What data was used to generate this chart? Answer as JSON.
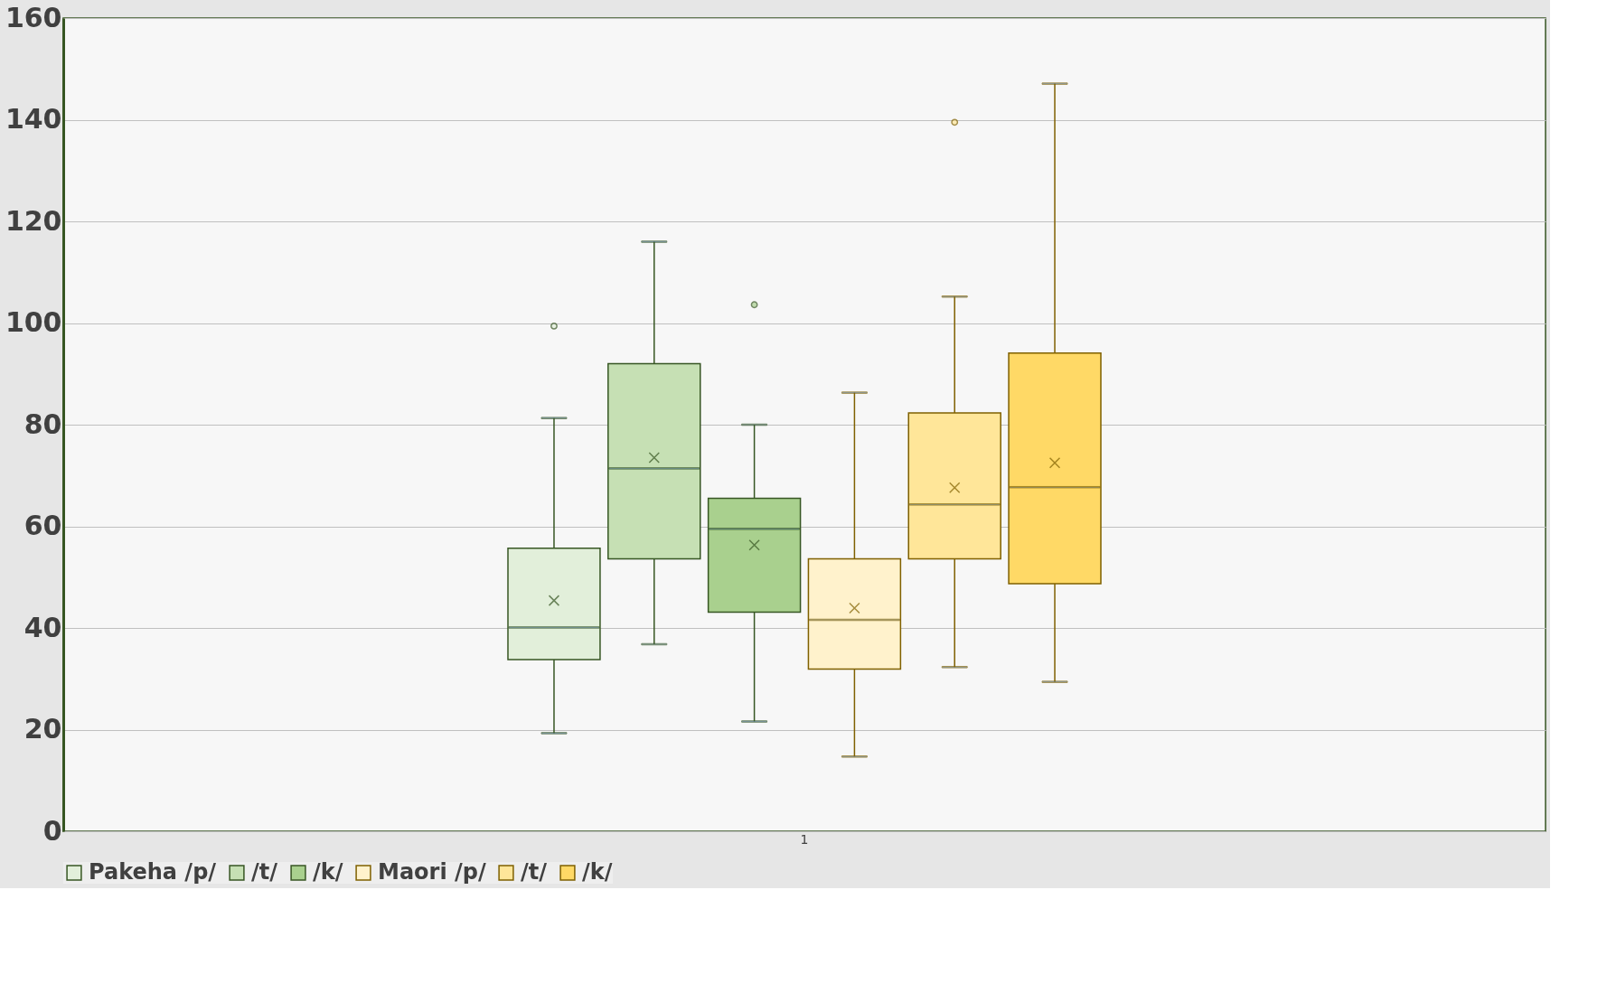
{
  "chart_data": {
    "type": "box",
    "categories": [
      "1"
    ],
    "ylim": [
      0,
      160
    ],
    "yticks": [
      0,
      20,
      40,
      60,
      80,
      100,
      120,
      140,
      160
    ],
    "grid": "y",
    "legend": "bottom",
    "series": [
      {
        "name": "Pakeha /p/",
        "color": "#e2efda",
        "boxes": [
          {
            "low": 19.3,
            "q1": 33.8,
            "median": 40.1,
            "q3": 55.7,
            "high": 81.3,
            "mean": 45.4,
            "outliers": [
              99.4
            ]
          }
        ]
      },
      {
        "name": "/t/",
        "color": "#c6e0b4",
        "boxes": [
          {
            "low": 36.8,
            "q1": 53.6,
            "median": 71.4,
            "q3": 92,
            "high": 116,
            "mean": 73.5
          }
        ]
      },
      {
        "name": "/k/",
        "color": "#a9d08e",
        "boxes": [
          {
            "low": 21.6,
            "q1": 43.1,
            "median": 59.5,
            "q3": 65.5,
            "high": 80,
            "mean": 56.3,
            "outliers": [
              103.6
            ]
          }
        ]
      },
      {
        "name": "Maori /p/",
        "color": "#fff2cc",
        "boxes": [
          {
            "low": 14.7,
            "q1": 31.9,
            "median": 41.6,
            "q3": 53.6,
            "high": 86.3,
            "mean": 43.9
          }
        ]
      },
      {
        "name": "/t/",
        "color": "#ffe699",
        "boxes": [
          {
            "low": 32.3,
            "q1": 53.6,
            "median": 64.3,
            "q3": 82.3,
            "high": 105.2,
            "mean": 67.6,
            "outliers": [
              139.5
            ]
          }
        ]
      },
      {
        "name": "/k/",
        "color": "#ffd966",
        "boxes": [
          {
            "low": 29.4,
            "q1": 48.7,
            "median": 67.7,
            "q3": 94.1,
            "high": 147.1,
            "mean": 72.5
          }
        ]
      }
    ]
  }
}
